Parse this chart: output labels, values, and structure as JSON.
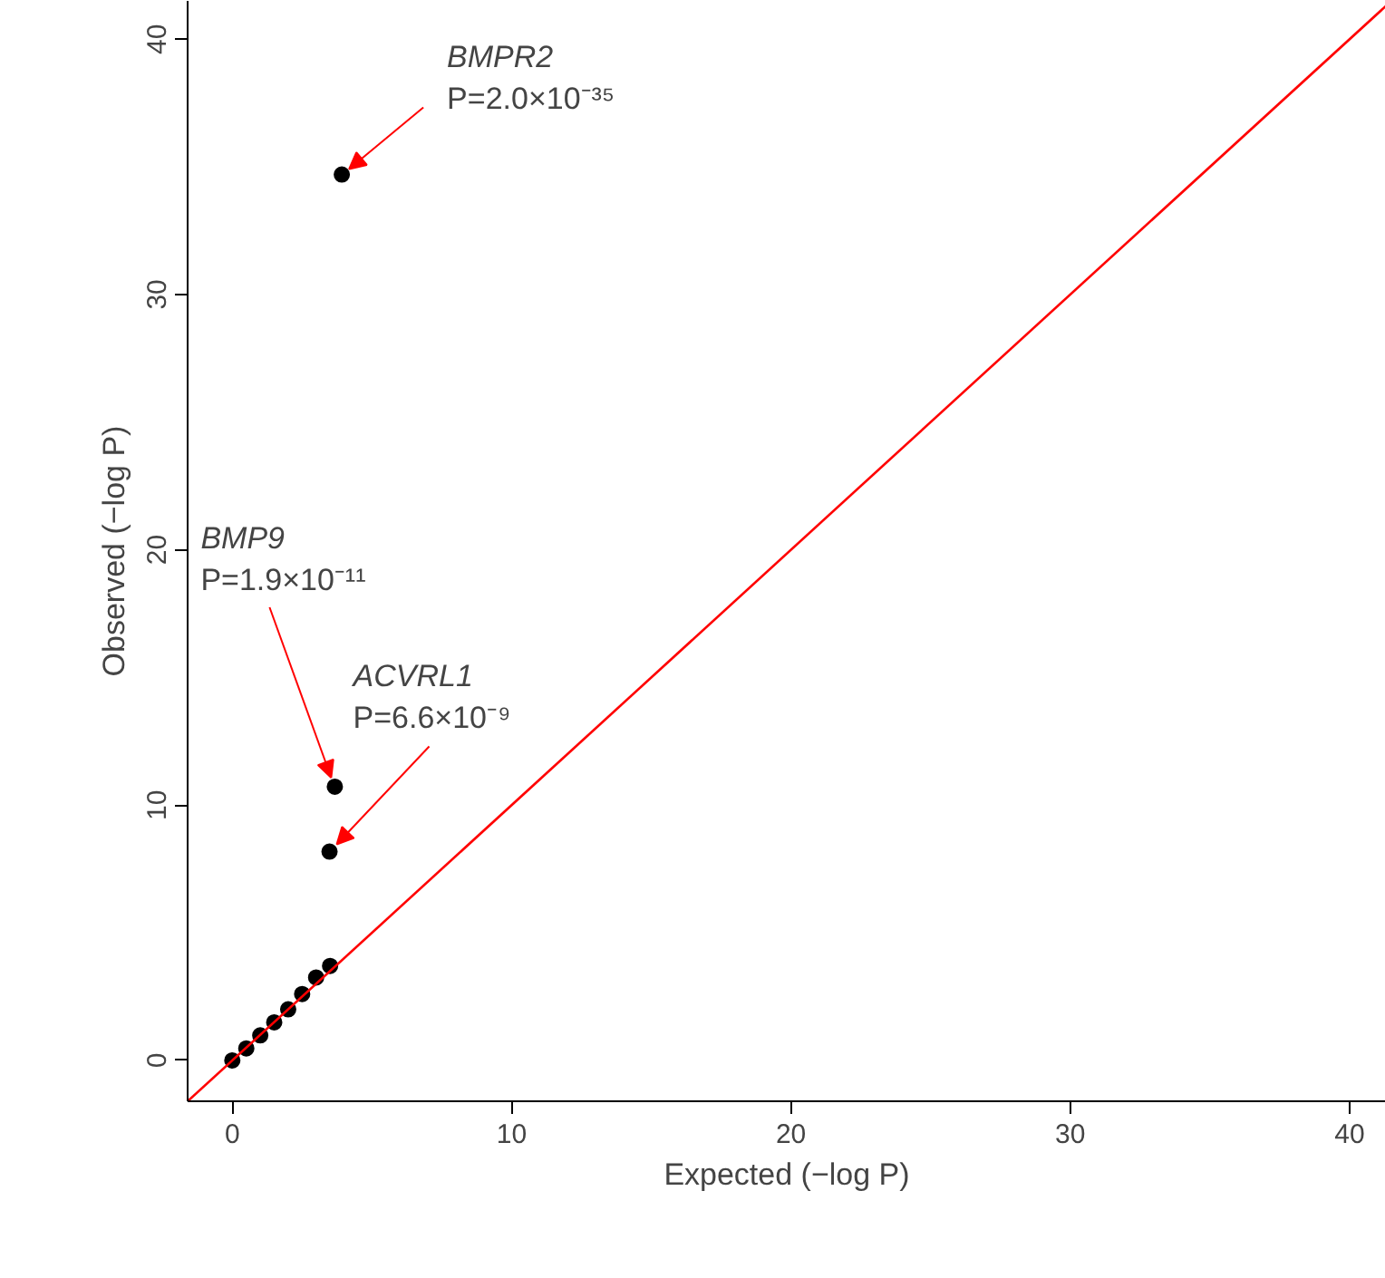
{
  "chart_data": {
    "type": "scatter",
    "xlabel": "Expected (−log P)",
    "ylabel": "Observed (−log P)",
    "xlim": [
      -1.6,
      41.3
    ],
    "ylim": [
      -1.6,
      41.5
    ],
    "xticks": [
      0,
      10,
      20,
      30,
      40
    ],
    "yticks": [
      0,
      10,
      20,
      30,
      40
    ],
    "grid": false,
    "series": [
      {
        "marker": "circle",
        "color": "#000000",
        "x": [
          0,
          0.5,
          1.0,
          1.5,
          2.0,
          2.5,
          3.0,
          3.5,
          3.48,
          3.67,
          3.92
        ],
        "values": [
          0,
          0.47,
          0.98,
          1.49,
          2.0,
          2.6,
          3.25,
          3.7,
          8.18,
          10.72,
          34.7
        ]
      },
      {
        "type": "line",
        "color": "#ff0000",
        "x": [
          -1.6,
          41.3
        ],
        "values": [
          -1.6,
          41.3
        ]
      }
    ],
    "annotations": [
      {
        "text": "BMPR2\nP=2.0×10⁻³⁵",
        "x": 3.92,
        "y": 34.7
      },
      {
        "text": "BMP9\nP=1.9×10⁻¹¹",
        "x": 3.67,
        "y": 10.72
      },
      {
        "text": "ACVRL1\nP=6.6×10⁻⁹",
        "x": 3.48,
        "y": 8.18
      }
    ]
  }
}
